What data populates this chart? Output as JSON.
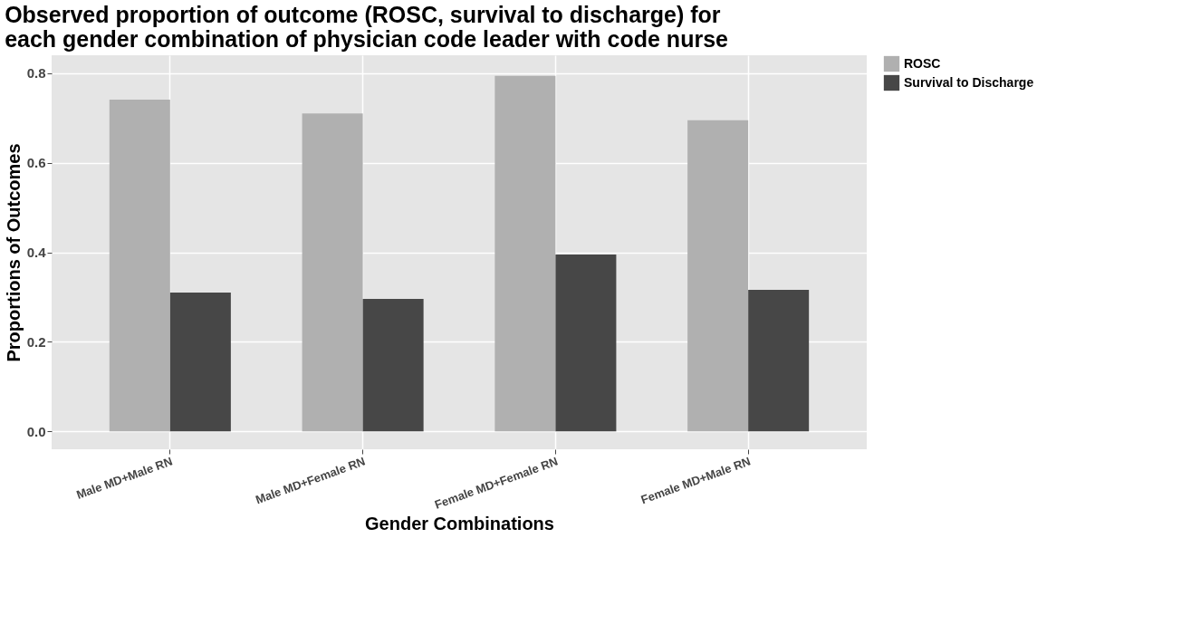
{
  "chart_data": {
    "type": "bar",
    "title": "Observed proportion of outcome (ROSC, survival to discharge) for\n  each gender combination of physician code leader with code nurse",
    "xlabel": "Gender Combinations",
    "ylabel": "Proportions of Outcomes",
    "categories": [
      "Male MD+Male RN",
      "Male MD+Female RN",
      "Female MD+Female RN",
      "Female MD+Male RN"
    ],
    "series": [
      {
        "name": "ROSC",
        "color": "#b0b0b0",
        "values": [
          0.741,
          0.71,
          0.794,
          0.695
        ]
      },
      {
        "name": "Survival to Discharge",
        "color": "#474747",
        "values": [
          0.31,
          0.296,
          0.395,
          0.316
        ]
      }
    ],
    "ylim": [
      -0.04,
      0.84
    ],
    "yticks": [
      {
        "value": 0,
        "label": "0.0"
      },
      0.2,
      0.4,
      0.6,
      0.8
    ],
    "grid": true,
    "legend": "right"
  }
}
